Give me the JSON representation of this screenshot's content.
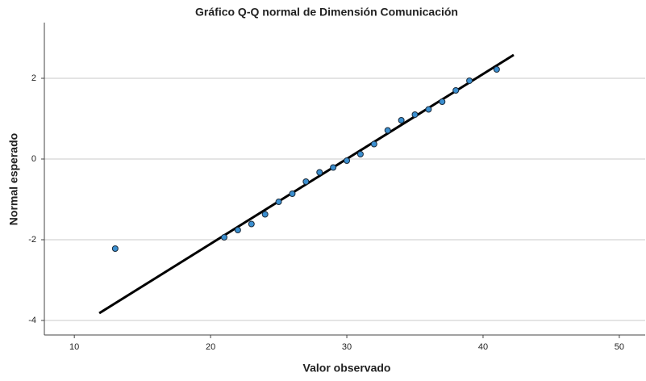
{
  "chart_data": {
    "type": "scatter",
    "title": "Gráfico Q-Q normal de Dimensión Comunicación",
    "x_label": "Valor observado",
    "y_label": "Normal esperado",
    "x": [
      13,
      21,
      22,
      23,
      24,
      25,
      26,
      27,
      28,
      29,
      30,
      31,
      32,
      33,
      34,
      35,
      36,
      37,
      38,
      39,
      41
    ],
    "values": [
      -2.22,
      -1.94,
      -1.76,
      -1.61,
      -1.37,
      -1.06,
      -0.86,
      -0.56,
      -0.33,
      -0.21,
      -0.04,
      0.12,
      0.37,
      0.71,
      0.96,
      1.1,
      1.23,
      1.42,
      1.7,
      1.94,
      2.22
    ],
    "color": "#3b8fd0",
    "reference_line": {
      "x": [
        11.83,
        42.25
      ],
      "y": [
        -3.82,
        2.58
      ],
      "color": "#000000"
    },
    "xlim": [
      7.8,
      51.9
    ],
    "xticks": [
      10,
      20,
      30,
      40,
      50
    ],
    "ylim": [
      -4.36,
      3.38
    ],
    "yticks": [
      -4,
      -2,
      0,
      2
    ],
    "grid": true
  }
}
